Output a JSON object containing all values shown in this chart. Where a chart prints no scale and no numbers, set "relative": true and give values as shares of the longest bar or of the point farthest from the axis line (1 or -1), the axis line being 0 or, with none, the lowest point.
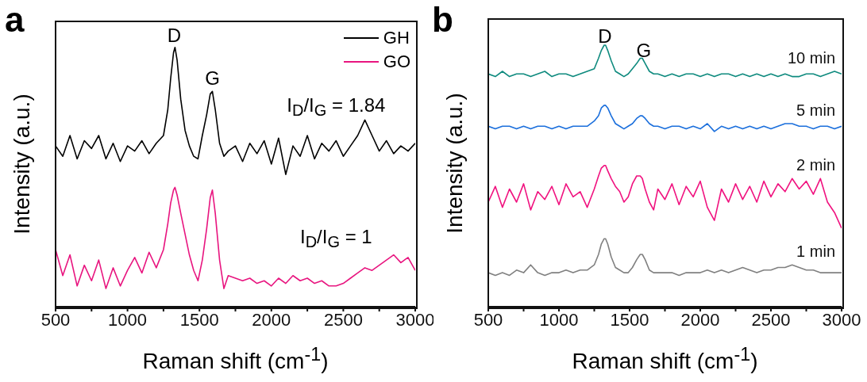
{
  "chart_data": [
    {
      "type": "line",
      "title": "a",
      "xlabel": "Raman shift (cm$^{-1}$)",
      "ylabel": "Intensity (a.u.)",
      "relative": true,
      "legend": "top right",
      "xlim": [
        500,
        3000
      ],
      "xticks": [
        500,
        {
          "value": 750,
          "label": null
        },
        1000,
        {
          "value": 1250,
          "label": null
        },
        1500,
        {
          "value": 1750,
          "label": null
        },
        2000,
        {
          "value": 2250,
          "label": null
        },
        2500,
        {
          "value": 2750,
          "label": null
        },
        3000
      ],
      "x": [
        500,
        550,
        600,
        650,
        700,
        750,
        800,
        850,
        900,
        950,
        1000,
        1050,
        1100,
        1150,
        1200,
        1250,
        1280,
        1300,
        1320,
        1330,
        1345,
        1370,
        1400,
        1430,
        1460,
        1490,
        1520,
        1550,
        1575,
        1590,
        1610,
        1640,
        1670,
        1700,
        1750,
        1800,
        1850,
        1900,
        1950,
        2000,
        2050,
        2100,
        2150,
        2200,
        2250,
        2300,
        2350,
        2400,
        2450,
        2500,
        2550,
        2600,
        2650,
        2700,
        2750,
        2800,
        2850,
        2900,
        2950,
        3000
      ],
      "series": [
        {
          "name": "GH",
          "color": "#000000",
          "values": [
            0.62,
            0.58,
            0.66,
            0.57,
            0.64,
            0.61,
            0.66,
            0.57,
            0.63,
            0.56,
            0.62,
            0.6,
            0.64,
            0.59,
            0.63,
            0.66,
            0.76,
            0.88,
            0.98,
            1.0,
            0.95,
            0.8,
            0.68,
            0.62,
            0.58,
            0.57,
            0.66,
            0.74,
            0.82,
            0.83,
            0.76,
            0.63,
            0.58,
            0.6,
            0.62,
            0.56,
            0.63,
            0.59,
            0.64,
            0.55,
            0.65,
            0.51,
            0.62,
            0.58,
            0.66,
            0.57,
            0.63,
            0.6,
            0.64,
            0.58,
            0.62,
            0.66,
            0.72,
            0.66,
            0.6,
            0.64,
            0.59,
            0.62,
            0.6,
            0.63
          ]
        },
        {
          "name": "GO",
          "color": "#e8157f",
          "values": [
            0.22,
            0.12,
            0.2,
            0.08,
            0.16,
            0.1,
            0.18,
            0.07,
            0.15,
            0.08,
            0.14,
            0.19,
            0.13,
            0.21,
            0.15,
            0.22,
            0.32,
            0.4,
            0.45,
            0.46,
            0.43,
            0.36,
            0.28,
            0.2,
            0.14,
            0.1,
            0.18,
            0.3,
            0.42,
            0.45,
            0.36,
            0.18,
            0.07,
            0.12,
            0.11,
            0.1,
            0.11,
            0.09,
            0.1,
            0.08,
            0.11,
            0.09,
            0.12,
            0.1,
            0.11,
            0.09,
            0.1,
            0.08,
            0.08,
            0.09,
            0.11,
            0.13,
            0.15,
            0.14,
            0.16,
            0.18,
            0.2,
            0.17,
            0.19,
            0.14
          ]
        }
      ],
      "annotations": [
        "D",
        "G",
        "I$_{D}$/I$_{G}$ = 1.84",
        "I$_{D}$/I$_{G}$ = 1"
      ]
    },
    {
      "type": "line",
      "title": "b",
      "xlabel": "Raman shift (cm$^{-1}$)",
      "ylabel": "Intensity (a.u.)",
      "relative": true,
      "xlim": [
        500,
        3000
      ],
      "xticks": [
        500,
        {
          "value": 750,
          "label": null
        },
        1000,
        {
          "value": 1250,
          "label": null
        },
        1500,
        {
          "value": 1750,
          "label": null
        },
        2000,
        {
          "value": 2250,
          "label": null
        },
        2500,
        {
          "value": 2750,
          "label": null
        },
        3000
      ],
      "x": [
        500,
        550,
        600,
        650,
        700,
        750,
        800,
        850,
        900,
        950,
        1000,
        1050,
        1100,
        1150,
        1200,
        1250,
        1280,
        1300,
        1320,
        1330,
        1345,
        1370,
        1400,
        1430,
        1460,
        1490,
        1520,
        1550,
        1575,
        1590,
        1610,
        1640,
        1670,
        1700,
        1750,
        1800,
        1850,
        1900,
        1950,
        2000,
        2050,
        2100,
        2150,
        2200,
        2250,
        2300,
        2350,
        2400,
        2450,
        2500,
        2550,
        2600,
        2650,
        2700,
        2750,
        2800,
        2850,
        2900,
        2950,
        3000
      ],
      "series": [
        {
          "name": "10 min",
          "color": "#0e8a7e",
          "values": [
            0.89,
            0.88,
            0.9,
            0.88,
            0.89,
            0.89,
            0.88,
            0.89,
            0.9,
            0.88,
            0.89,
            0.89,
            0.88,
            0.89,
            0.9,
            0.91,
            0.95,
            0.98,
            1.0,
            1.0,
            0.98,
            0.94,
            0.9,
            0.89,
            0.88,
            0.89,
            0.91,
            0.93,
            0.95,
            0.95,
            0.93,
            0.9,
            0.89,
            0.89,
            0.88,
            0.89,
            0.88,
            0.89,
            0.89,
            0.88,
            0.89,
            0.88,
            0.89,
            0.89,
            0.88,
            0.89,
            0.88,
            0.89,
            0.88,
            0.89,
            0.88,
            0.89,
            0.88,
            0.88,
            0.89,
            0.89,
            0.88,
            0.89,
            0.9,
            0.89
          ]
        },
        {
          "name": "5 min",
          "color": "#1b6fdc",
          "values": [
            0.69,
            0.68,
            0.69,
            0.69,
            0.68,
            0.69,
            0.68,
            0.69,
            0.69,
            0.68,
            0.69,
            0.68,
            0.69,
            0.69,
            0.69,
            0.71,
            0.73,
            0.76,
            0.77,
            0.77,
            0.76,
            0.73,
            0.7,
            0.69,
            0.68,
            0.69,
            0.7,
            0.72,
            0.73,
            0.73,
            0.72,
            0.7,
            0.69,
            0.69,
            0.68,
            0.69,
            0.69,
            0.68,
            0.69,
            0.68,
            0.7,
            0.67,
            0.69,
            0.68,
            0.69,
            0.68,
            0.69,
            0.68,
            0.69,
            0.68,
            0.69,
            0.7,
            0.7,
            0.69,
            0.69,
            0.68,
            0.69,
            0.69,
            0.68,
            0.69
          ]
        },
        {
          "name": "2 min",
          "color": "#f0127f",
          "values": [
            0.4,
            0.46,
            0.38,
            0.45,
            0.4,
            0.47,
            0.37,
            0.44,
            0.41,
            0.46,
            0.39,
            0.47,
            0.42,
            0.44,
            0.38,
            0.45,
            0.5,
            0.53,
            0.54,
            0.54,
            0.52,
            0.49,
            0.46,
            0.44,
            0.4,
            0.42,
            0.47,
            0.5,
            0.5,
            0.49,
            0.45,
            0.4,
            0.37,
            0.45,
            0.41,
            0.47,
            0.39,
            0.46,
            0.42,
            0.48,
            0.38,
            0.33,
            0.45,
            0.4,
            0.47,
            0.41,
            0.46,
            0.4,
            0.48,
            0.42,
            0.47,
            0.44,
            0.49,
            0.45,
            0.48,
            0.43,
            0.49,
            0.4,
            0.36,
            0.3
          ]
        },
        {
          "name": "1 min",
          "color": "#808080",
          "values": [
            0.13,
            0.12,
            0.13,
            0.12,
            0.14,
            0.13,
            0.16,
            0.13,
            0.12,
            0.13,
            0.13,
            0.14,
            0.13,
            0.14,
            0.14,
            0.16,
            0.2,
            0.24,
            0.26,
            0.26,
            0.24,
            0.19,
            0.15,
            0.14,
            0.13,
            0.13,
            0.15,
            0.18,
            0.2,
            0.2,
            0.18,
            0.14,
            0.13,
            0.13,
            0.13,
            0.13,
            0.12,
            0.13,
            0.13,
            0.13,
            0.14,
            0.13,
            0.14,
            0.13,
            0.14,
            0.15,
            0.14,
            0.13,
            0.14,
            0.14,
            0.15,
            0.15,
            0.16,
            0.15,
            0.14,
            0.14,
            0.13,
            0.13,
            0.13,
            0.13
          ]
        }
      ],
      "annotations": [
        "D",
        "G"
      ]
    }
  ]
}
